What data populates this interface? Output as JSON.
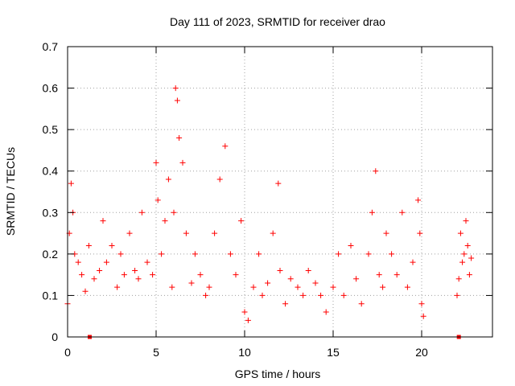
{
  "chart_data": {
    "type": "scatter",
    "title": "Day 111 of 2023, SRMTID for receiver drao",
    "xlabel": "GPS time / hours",
    "ylabel": "SRMTID / TECUs",
    "xlim": [
      0,
      24
    ],
    "ylim": [
      0,
      0.7
    ],
    "x_ticks": [
      0,
      5,
      10,
      15,
      20
    ],
    "y_ticks": [
      0,
      0.1,
      0.2,
      0.3,
      0.4,
      0.5,
      0.6,
      0.7
    ],
    "x_tick_labels": [
      "0",
      "5",
      "10",
      "15",
      "20"
    ],
    "y_tick_labels": [
      "0",
      "0.1",
      "0.2",
      "0.3",
      "0.4",
      "0.5",
      "0.6",
      "0.7"
    ],
    "grid": true,
    "marker": "plus",
    "color": "#ff0000",
    "series": [
      {
        "name": "SRMTID",
        "x": [
          0.0,
          0.1,
          0.2,
          0.3,
          0.4,
          0.6,
          0.8,
          1.0,
          1.2,
          1.5,
          1.8,
          2.0,
          2.2,
          2.5,
          2.8,
          3.0,
          3.2,
          3.5,
          3.8,
          4.0,
          4.2,
          4.5,
          4.8,
          5.0,
          5.1,
          5.3,
          5.5,
          5.7,
          5.9,
          6.0,
          6.1,
          6.2,
          6.3,
          6.5,
          6.7,
          7.0,
          7.2,
          7.5,
          7.8,
          8.0,
          8.3,
          8.6,
          8.9,
          9.2,
          9.5,
          9.8,
          10.0,
          10.2,
          10.5,
          10.8,
          11.0,
          11.3,
          11.6,
          11.9,
          12.0,
          12.3,
          12.6,
          13.0,
          13.3,
          13.6,
          14.0,
          14.3,
          14.6,
          15.0,
          15.3,
          15.6,
          16.0,
          16.3,
          16.6,
          17.0,
          17.2,
          17.4,
          17.6,
          17.8,
          18.0,
          18.3,
          18.6,
          18.9,
          19.2,
          19.5,
          19.8,
          19.9,
          20.0,
          20.1,
          22.0,
          22.1,
          22.2,
          22.3,
          22.4,
          22.5,
          22.6,
          22.7,
          22.8
        ],
        "y": [
          0.08,
          0.25,
          0.37,
          0.3,
          0.2,
          0.18,
          0.15,
          0.11,
          0.22,
          0.14,
          0.16,
          0.28,
          0.18,
          0.22,
          0.12,
          0.2,
          0.15,
          0.25,
          0.16,
          0.14,
          0.3,
          0.18,
          0.15,
          0.42,
          0.33,
          0.2,
          0.28,
          0.38,
          0.12,
          0.3,
          0.6,
          0.57,
          0.48,
          0.42,
          0.25,
          0.13,
          0.2,
          0.15,
          0.1,
          0.12,
          0.25,
          0.38,
          0.46,
          0.2,
          0.15,
          0.28,
          0.06,
          0.04,
          0.12,
          0.2,
          0.1,
          0.13,
          0.25,
          0.37,
          0.16,
          0.08,
          0.14,
          0.12,
          0.1,
          0.16,
          0.13,
          0.1,
          0.06,
          0.12,
          0.2,
          0.1,
          0.22,
          0.14,
          0.08,
          0.2,
          0.3,
          0.4,
          0.15,
          0.12,
          0.25,
          0.2,
          0.15,
          0.3,
          0.12,
          0.18,
          0.33,
          0.25,
          0.08,
          0.05,
          0.1,
          0.14,
          0.25,
          0.18,
          0.2,
          0.28,
          0.22,
          0.15,
          0.19
        ]
      }
    ],
    "ground_markers_x": [
      1.25,
      22.1
    ]
  }
}
